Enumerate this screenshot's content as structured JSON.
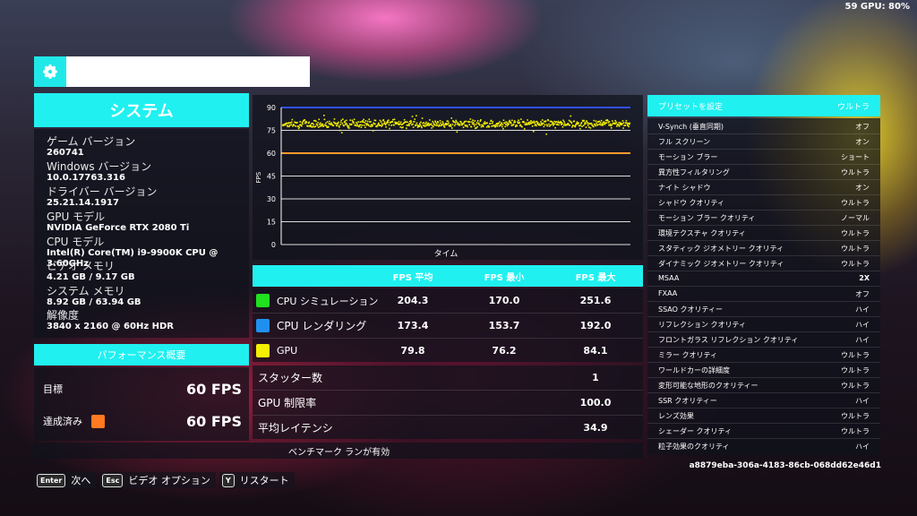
{
  "top_readout": "59 GPU: 80%",
  "search": {
    "icon": "gear-icon",
    "value": "",
    "placeholder": ""
  },
  "system": {
    "title": "システム",
    "items": [
      {
        "label": "ゲーム バージョン",
        "value": "260741"
      },
      {
        "label": "Windows バージョン",
        "value": "10.0.17763.316"
      },
      {
        "label": "ドライバー バージョン",
        "value": "25.21.14.1917"
      },
      {
        "label": "GPU モデル",
        "value": "NVIDIA GeForce RTX 2080 Ti"
      },
      {
        "label": "CPU モデル",
        "value": "Intel(R) Core(TM) i9-9900K CPU @ 3.60GHz"
      },
      {
        "label": "ビデオ メモリ",
        "value": "4.21 GB / 9.17 GB"
      },
      {
        "label": "システム メモリ",
        "value": "8.92 GB / 63.94 GB"
      },
      {
        "label": "解像度",
        "value": "3840 x 2160 @ 60Hz HDR"
      }
    ]
  },
  "performance": {
    "title": "パフォーマンス概要",
    "target_label": "目標",
    "target_value": "60 FPS",
    "achieved_label": "達成済み",
    "achieved_value": "60 FPS",
    "achieved_color": "#ff7a20"
  },
  "chart_data": {
    "type": "scatter",
    "xlabel": "タイム",
    "ylabel": "FPS",
    "ylim": [
      0,
      90
    ],
    "yticks": [
      0,
      15,
      30,
      45,
      60,
      75,
      90
    ],
    "grid": true,
    "series": [
      {
        "name": "GPU",
        "color": "#f4f000",
        "mean": 79.8,
        "min": 76.2,
        "max": 84.1
      }
    ],
    "reference_lines": [
      {
        "y": 90,
        "color": "#3050ff"
      },
      {
        "y": 60,
        "color": "#ff9a30"
      }
    ]
  },
  "fps_table": {
    "headers": [
      "FPS 平均",
      "FPS 最小",
      "FPS 最大"
    ],
    "rows": [
      {
        "name": "CPU シミュレーション",
        "color": "#20e020",
        "avg": "204.3",
        "min": "170.0",
        "max": "251.6"
      },
      {
        "name": "CPU レンダリング",
        "color": "#2090f0",
        "avg": "173.4",
        "min": "153.7",
        "max": "192.0"
      },
      {
        "name": "GPU",
        "color": "#f4f000",
        "avg": "79.8",
        "min": "76.2",
        "max": "84.1"
      }
    ]
  },
  "stats": [
    {
      "name": "スタッター数",
      "value": "1"
    },
    {
      "name": "GPU 制限率",
      "value": "100.0"
    },
    {
      "name": "平均レイテンシ",
      "value": "34.9"
    }
  ],
  "benchmark_status": "ベンチマーク ランが有効",
  "preset": {
    "label": "プリセットを設定",
    "value": "ウルトラ"
  },
  "settings": [
    {
      "name": "V-Synch (垂直同期)",
      "value": "オフ"
    },
    {
      "name": "フル スクリーン",
      "value": "オン"
    },
    {
      "name": "モーション ブラー",
      "value": "ショート"
    },
    {
      "name": "異方性フィルタリング",
      "value": "ウルトラ"
    },
    {
      "name": "ナイト シャドウ",
      "value": "オン"
    },
    {
      "name": "シャドウ クオリティ",
      "value": "ウルトラ"
    },
    {
      "name": "モーション ブラー クオリティ",
      "value": "ノーマル"
    },
    {
      "name": "環境テクスチャ クオリティ",
      "value": "ウルトラ"
    },
    {
      "name": "スタティック ジオメトリー クオリティ",
      "value": "ウルトラ"
    },
    {
      "name": "ダイナミック ジオメトリー クオリティ",
      "value": "ウルトラ"
    },
    {
      "name": "MSAA",
      "value": "2X"
    },
    {
      "name": "FXAA",
      "value": "オフ"
    },
    {
      "name": "SSAO クオリティー",
      "value": "ハイ"
    },
    {
      "name": "リフレクション クオリティ",
      "value": "ハイ"
    },
    {
      "name": "フロントガラス リフレクション クオリティ",
      "value": "ハイ"
    },
    {
      "name": "ミラー クオリティ",
      "value": "ウルトラ"
    },
    {
      "name": "ワールドカーの詳細度",
      "value": "ウルトラ"
    },
    {
      "name": "変形可能な地形のクオリティー",
      "value": "ウルトラ"
    },
    {
      "name": "SSR クオリティー",
      "value": "ハイ"
    },
    {
      "name": "レンズ効果",
      "value": "ウルトラ"
    },
    {
      "name": "シェーダー クオリティ",
      "value": "ウルトラ"
    },
    {
      "name": "粒子効果のクオリティ",
      "value": "ハイ"
    }
  ],
  "uuid": "a8879eba-306a-4183-86cb-068dd62e46d1",
  "footer": [
    {
      "key": "Enter",
      "label": "次へ"
    },
    {
      "key": "Esc",
      "label": "ビデオ オプション"
    },
    {
      "key": "Y",
      "label": "リスタート"
    }
  ]
}
